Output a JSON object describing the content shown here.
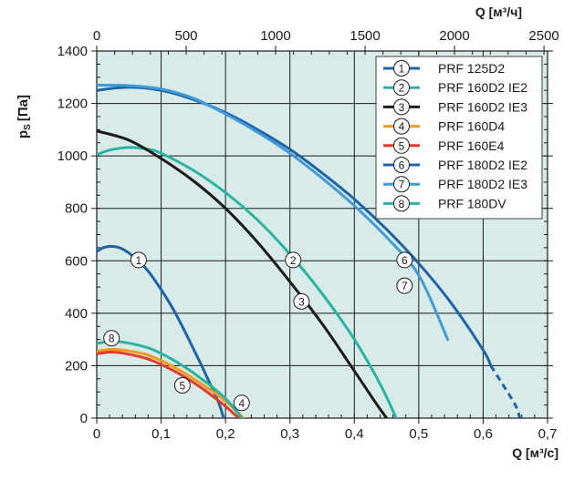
{
  "chart_data": {
    "type": "line",
    "title": "",
    "ylabel_main": "p",
    "ylabel_sub": "S",
    "ylabel_unit": "[Па]",
    "xlabel_bottom": "Q [м³/с]",
    "xlabel_top": "Q [м³/ч]",
    "x_range": [
      0,
      0.7
    ],
    "y_range": [
      0,
      1400
    ],
    "x_top_range_m3h": [
      0,
      2520
    ],
    "x_ticks": [
      "0",
      "0,1",
      "0,2",
      "0,3",
      "0,4",
      "0,5",
      "0,6",
      "0,7"
    ],
    "x_top_ticks": [
      "0",
      "500",
      "1000",
      "1500",
      "2000",
      "2500"
    ],
    "y_ticks": [
      "0",
      "200",
      "400",
      "600",
      "800",
      "1000",
      "1200",
      "1400"
    ],
    "grid": true,
    "legend_position": "top-right",
    "series": [
      {
        "id": "1",
        "name": "PRF 125D2",
        "color": "#1e63a8",
        "points": [
          [
            0,
            635
          ],
          [
            0.01,
            650
          ],
          [
            0.025,
            655
          ],
          [
            0.04,
            645
          ],
          [
            0.06,
            610
          ],
          [
            0.08,
            560
          ],
          [
            0.1,
            490
          ],
          [
            0.12,
            410
          ],
          [
            0.14,
            315
          ],
          [
            0.16,
            215
          ],
          [
            0.18,
            110
          ],
          [
            0.19,
            55
          ],
          [
            0.197,
            0
          ]
        ],
        "label_at": [
          0.065,
          603
        ]
      },
      {
        "id": "2",
        "name": "PRF 160D2 IE2",
        "color": "#27b3a2",
        "points": [
          [
            0,
            1005
          ],
          [
            0.02,
            1022
          ],
          [
            0.05,
            1032
          ],
          [
            0.08,
            1025
          ],
          [
            0.1,
            1010
          ],
          [
            0.15,
            945
          ],
          [
            0.2,
            860
          ],
          [
            0.25,
            755
          ],
          [
            0.3,
            625
          ],
          [
            0.35,
            475
          ],
          [
            0.4,
            300
          ],
          [
            0.44,
            130
          ],
          [
            0.465,
            0
          ]
        ],
        "label_at": [
          0.305,
          603
        ]
      },
      {
        "id": "3",
        "name": "PRF 160D2 IE3",
        "color": "#1a1a1a",
        "points": [
          [
            0,
            1095
          ],
          [
            0.05,
            1060
          ],
          [
            0.1,
            990
          ],
          [
            0.15,
            905
          ],
          [
            0.2,
            800
          ],
          [
            0.25,
            670
          ],
          [
            0.3,
            520
          ],
          [
            0.35,
            360
          ],
          [
            0.4,
            180
          ],
          [
            0.43,
            70
          ],
          [
            0.45,
            0
          ]
        ],
        "label_at": [
          0.318,
          445
        ]
      },
      {
        "id": "4",
        "name": "PRF 160D4",
        "color": "#f29a1d",
        "points": [
          [
            0,
            255
          ],
          [
            0.02,
            262
          ],
          [
            0.04,
            260
          ],
          [
            0.08,
            240
          ],
          [
            0.12,
            195
          ],
          [
            0.16,
            135
          ],
          [
            0.2,
            65
          ],
          [
            0.228,
            0
          ]
        ],
        "label_at": [
          0.225,
          58
        ]
      },
      {
        "id": "5",
        "name": "PRF 160E4",
        "color": "#e63a2c",
        "points": [
          [
            0,
            245
          ],
          [
            0.02,
            252
          ],
          [
            0.04,
            248
          ],
          [
            0.08,
            225
          ],
          [
            0.12,
            180
          ],
          [
            0.16,
            120
          ],
          [
            0.2,
            45
          ],
          [
            0.22,
            0
          ]
        ],
        "label_at": [
          0.133,
          125
        ]
      },
      {
        "id": "6",
        "name": "PRF 180D2 IE2",
        "color": "#1e63a8",
        "points": [
          [
            0,
            1250
          ],
          [
            0.05,
            1262
          ],
          [
            0.1,
            1250
          ],
          [
            0.15,
            1215
          ],
          [
            0.2,
            1165
          ],
          [
            0.25,
            1100
          ],
          [
            0.3,
            1025
          ],
          [
            0.35,
            935
          ],
          [
            0.4,
            835
          ],
          [
            0.45,
            720
          ],
          [
            0.5,
            590
          ],
          [
            0.55,
            440
          ],
          [
            0.6,
            260
          ],
          [
            0.612,
            200
          ]
        ],
        "dashed_points": [
          [
            0.612,
            200
          ],
          [
            0.63,
            130
          ],
          [
            0.65,
            50
          ],
          [
            0.657,
            0
          ]
        ],
        "label_at": [
          0.478,
          603
        ]
      },
      {
        "id": "7",
        "name": "PRF 180D2 IE3",
        "color": "#3f9ad8",
        "points": [
          [
            0,
            1270
          ],
          [
            0.05,
            1268
          ],
          [
            0.1,
            1255
          ],
          [
            0.15,
            1220
          ],
          [
            0.2,
            1160
          ],
          [
            0.25,
            1090
          ],
          [
            0.3,
            1010
          ],
          [
            0.35,
            915
          ],
          [
            0.4,
            810
          ],
          [
            0.45,
            690
          ],
          [
            0.5,
            545
          ],
          [
            0.545,
            300
          ]
        ],
        "label_at": [
          0.478,
          505
        ]
      },
      {
        "id": "8",
        "name": "PRF 180DV",
        "color": "#27b3a2",
        "points": [
          [
            0,
            285
          ],
          [
            0.02,
            292
          ],
          [
            0.04,
            290
          ],
          [
            0.08,
            268
          ],
          [
            0.12,
            220
          ],
          [
            0.16,
            155
          ],
          [
            0.2,
            75
          ],
          [
            0.225,
            0
          ]
        ],
        "label_at": [
          0.023,
          305
        ]
      }
    ]
  }
}
